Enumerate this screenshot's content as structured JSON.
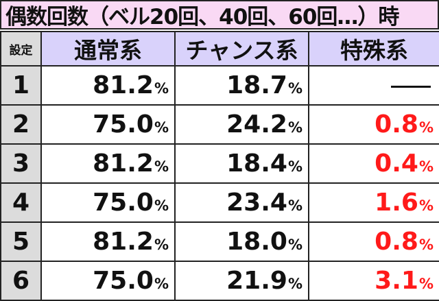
{
  "title": "偶数回数（ベル20回、40回、60回…）時",
  "headers": {
    "setting": "設定",
    "normal": "通常系",
    "chance": "チャンス系",
    "special": "特殊系"
  },
  "unit": "%",
  "accent_color": "#ff1a1a",
  "rows": [
    {
      "setting": "1",
      "normal": "81.2",
      "chance": "18.7",
      "special": "—"
    },
    {
      "setting": "2",
      "normal": "75.0",
      "chance": "24.2",
      "special": "0.8"
    },
    {
      "setting": "3",
      "normal": "81.2",
      "chance": "18.4",
      "special": "0.4"
    },
    {
      "setting": "4",
      "normal": "75.0",
      "chance": "23.4",
      "special": "1.6"
    },
    {
      "setting": "5",
      "normal": "81.2",
      "chance": "18.0",
      "special": "0.8"
    },
    {
      "setting": "6",
      "normal": "75.0",
      "chance": "21.9",
      "special": "3.1"
    }
  ]
}
